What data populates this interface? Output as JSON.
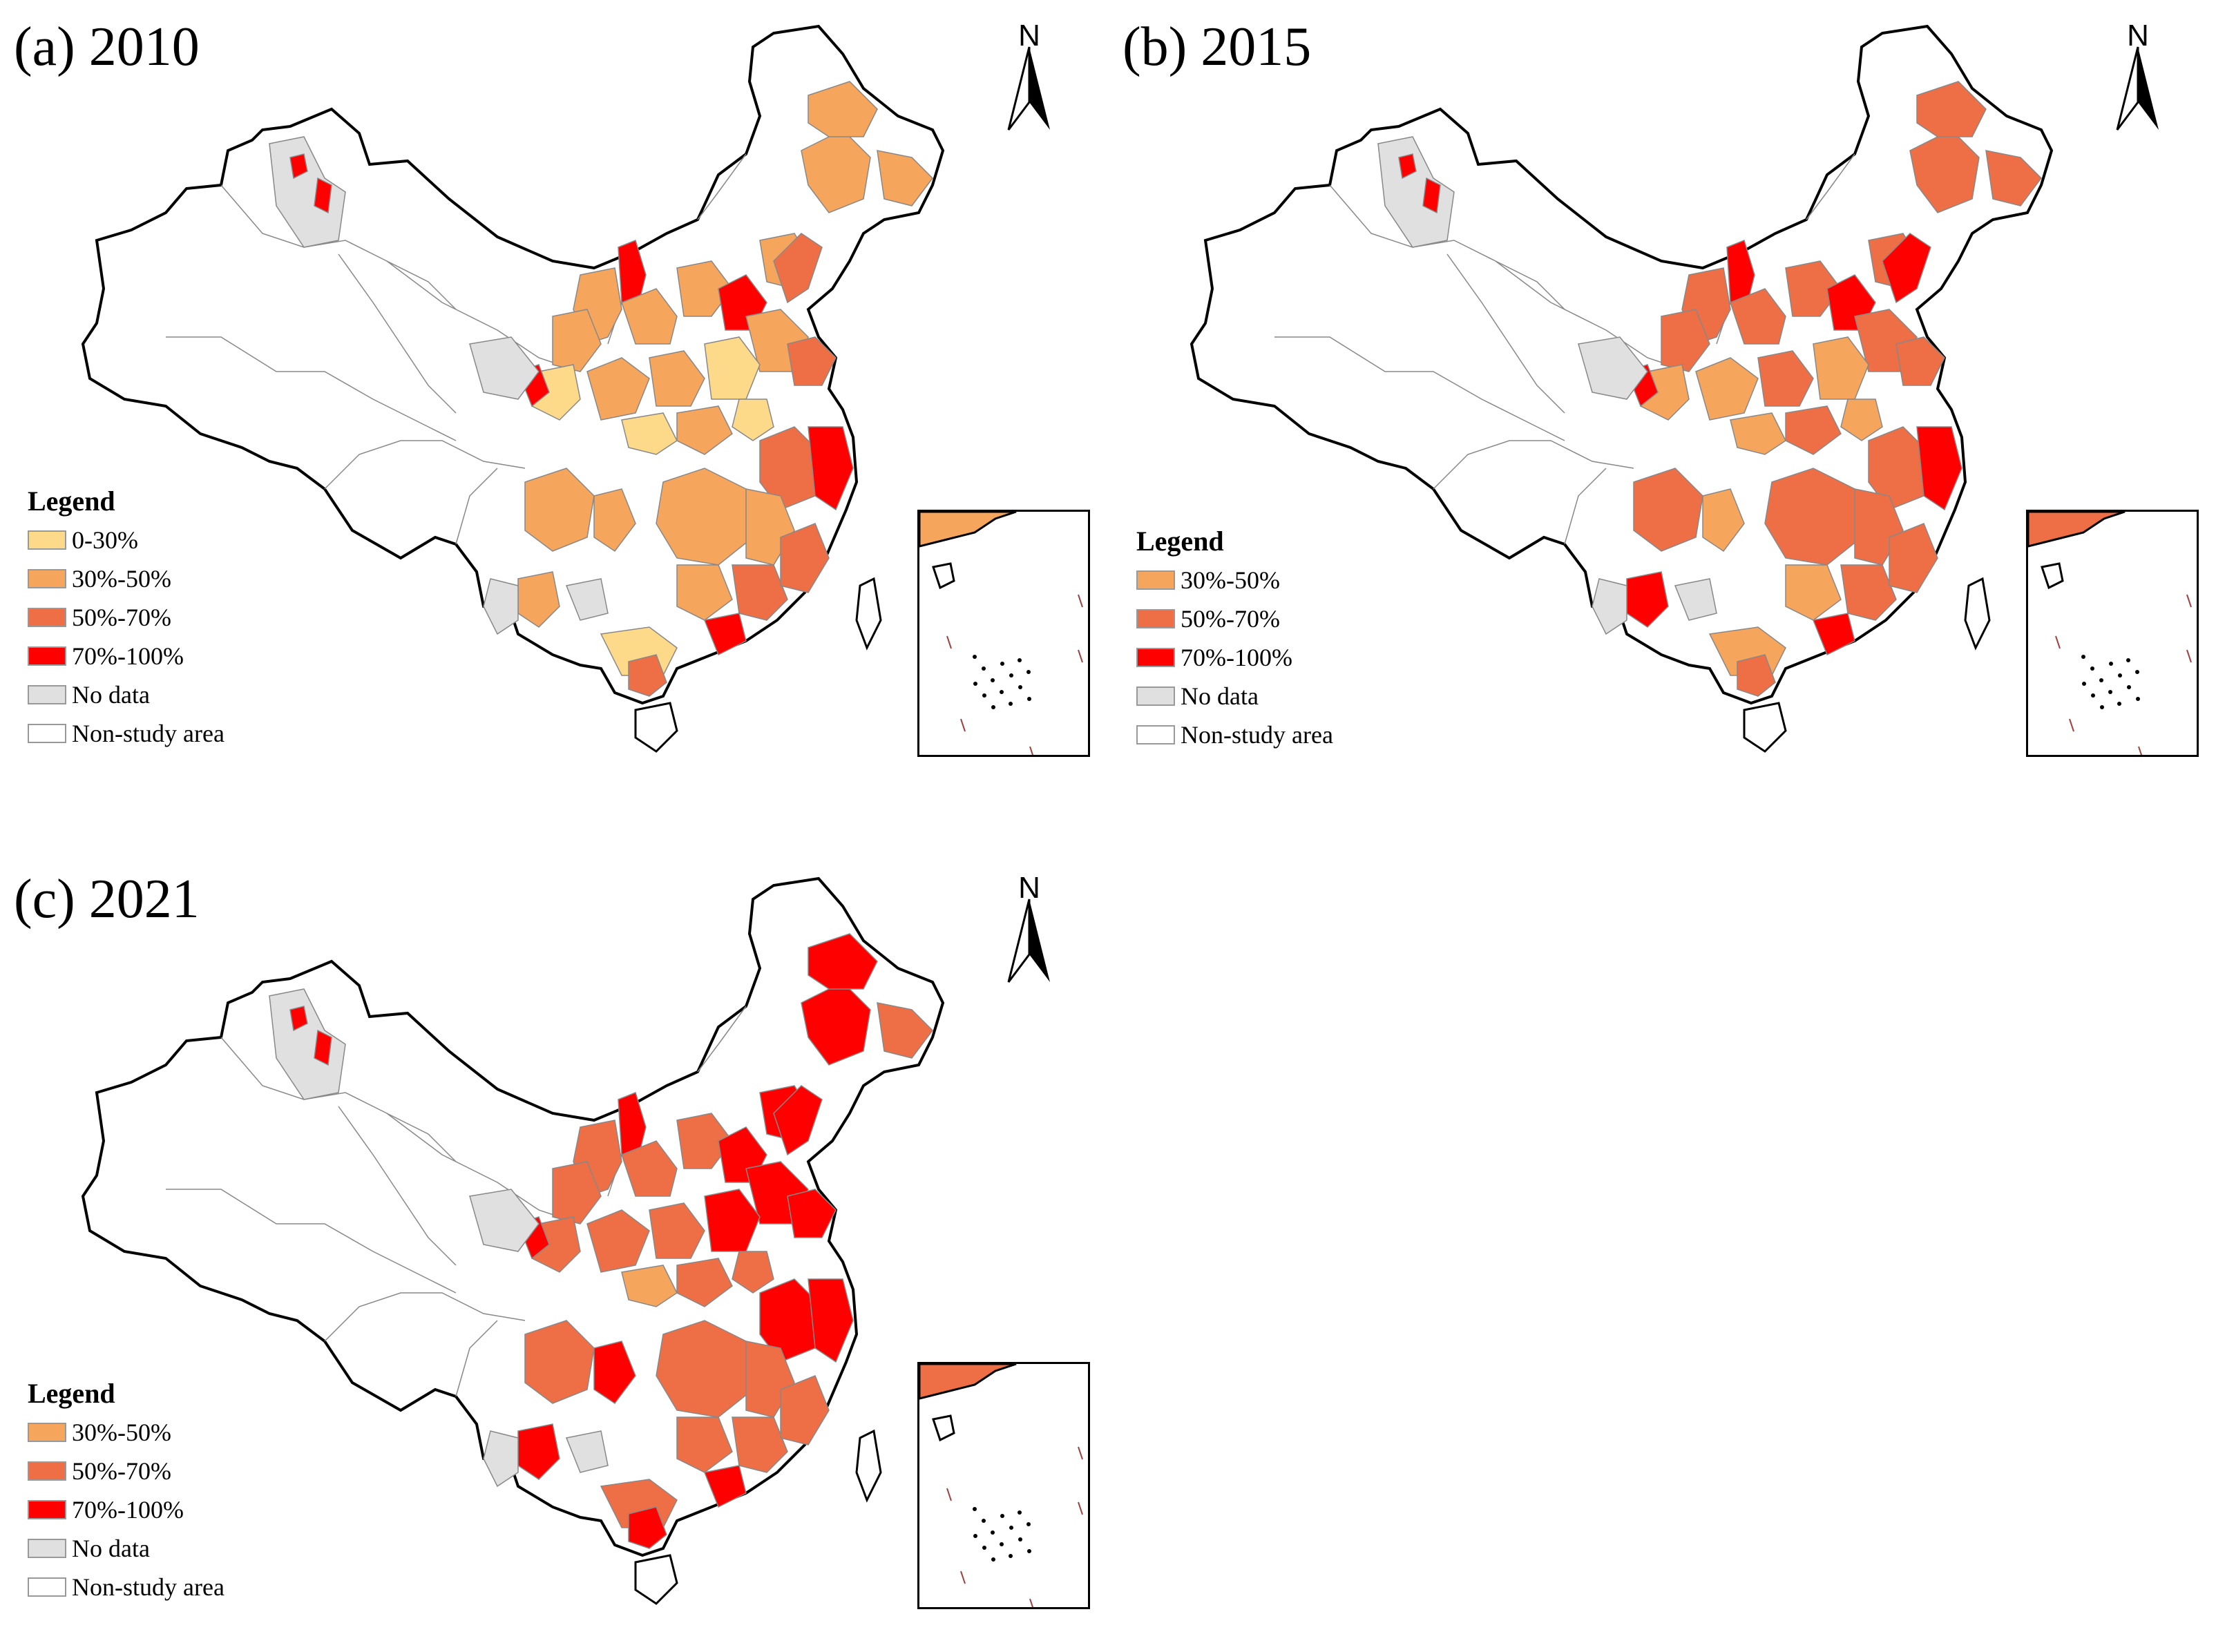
{
  "colors": {
    "class_0_30": "#fdd98a",
    "class_30_50": "#f6a55c",
    "class_50_70": "#ee6e46",
    "class_70_100": "#ff0000",
    "no_data": "#e0e0e0",
    "non_study": "#ffffff",
    "boundary": "#888888",
    "outline": "#000000"
  },
  "north_label": "N",
  "legend_title": "Legend",
  "panels": [
    {
      "id": "a",
      "title": "(a) 2010",
      "legend_items": [
        {
          "label": "0-30%",
          "color": "#fdd98a"
        },
        {
          "label": "30%-50%",
          "color": "#f6a55c"
        },
        {
          "label": "50%-70%",
          "color": "#ee6e46"
        },
        {
          "label": "70%-100%",
          "color": "#ff0000"
        },
        {
          "label": "No data",
          "color": "#e0e0e0"
        },
        {
          "label": "Non-study area",
          "color": "#ffffff"
        }
      ]
    },
    {
      "id": "b",
      "title": "(b) 2015",
      "legend_items": [
        {
          "label": "30%-50%",
          "color": "#f6a55c"
        },
        {
          "label": "50%-70%",
          "color": "#ee6e46"
        },
        {
          "label": "70%-100%",
          "color": "#ff0000"
        },
        {
          "label": "No data",
          "color": "#e0e0e0"
        },
        {
          "label": "Non-study area",
          "color": "#ffffff"
        }
      ]
    },
    {
      "id": "c",
      "title": "(c) 2021",
      "legend_items": [
        {
          "label": "30%-50%",
          "color": "#f6a55c"
        },
        {
          "label": "50%-70%",
          "color": "#ee6e46"
        },
        {
          "label": "70%-100%",
          "color": "#ff0000"
        },
        {
          "label": "No data",
          "color": "#e0e0e0"
        },
        {
          "label": "Non-study area",
          "color": "#ffffff"
        }
      ]
    }
  ]
}
